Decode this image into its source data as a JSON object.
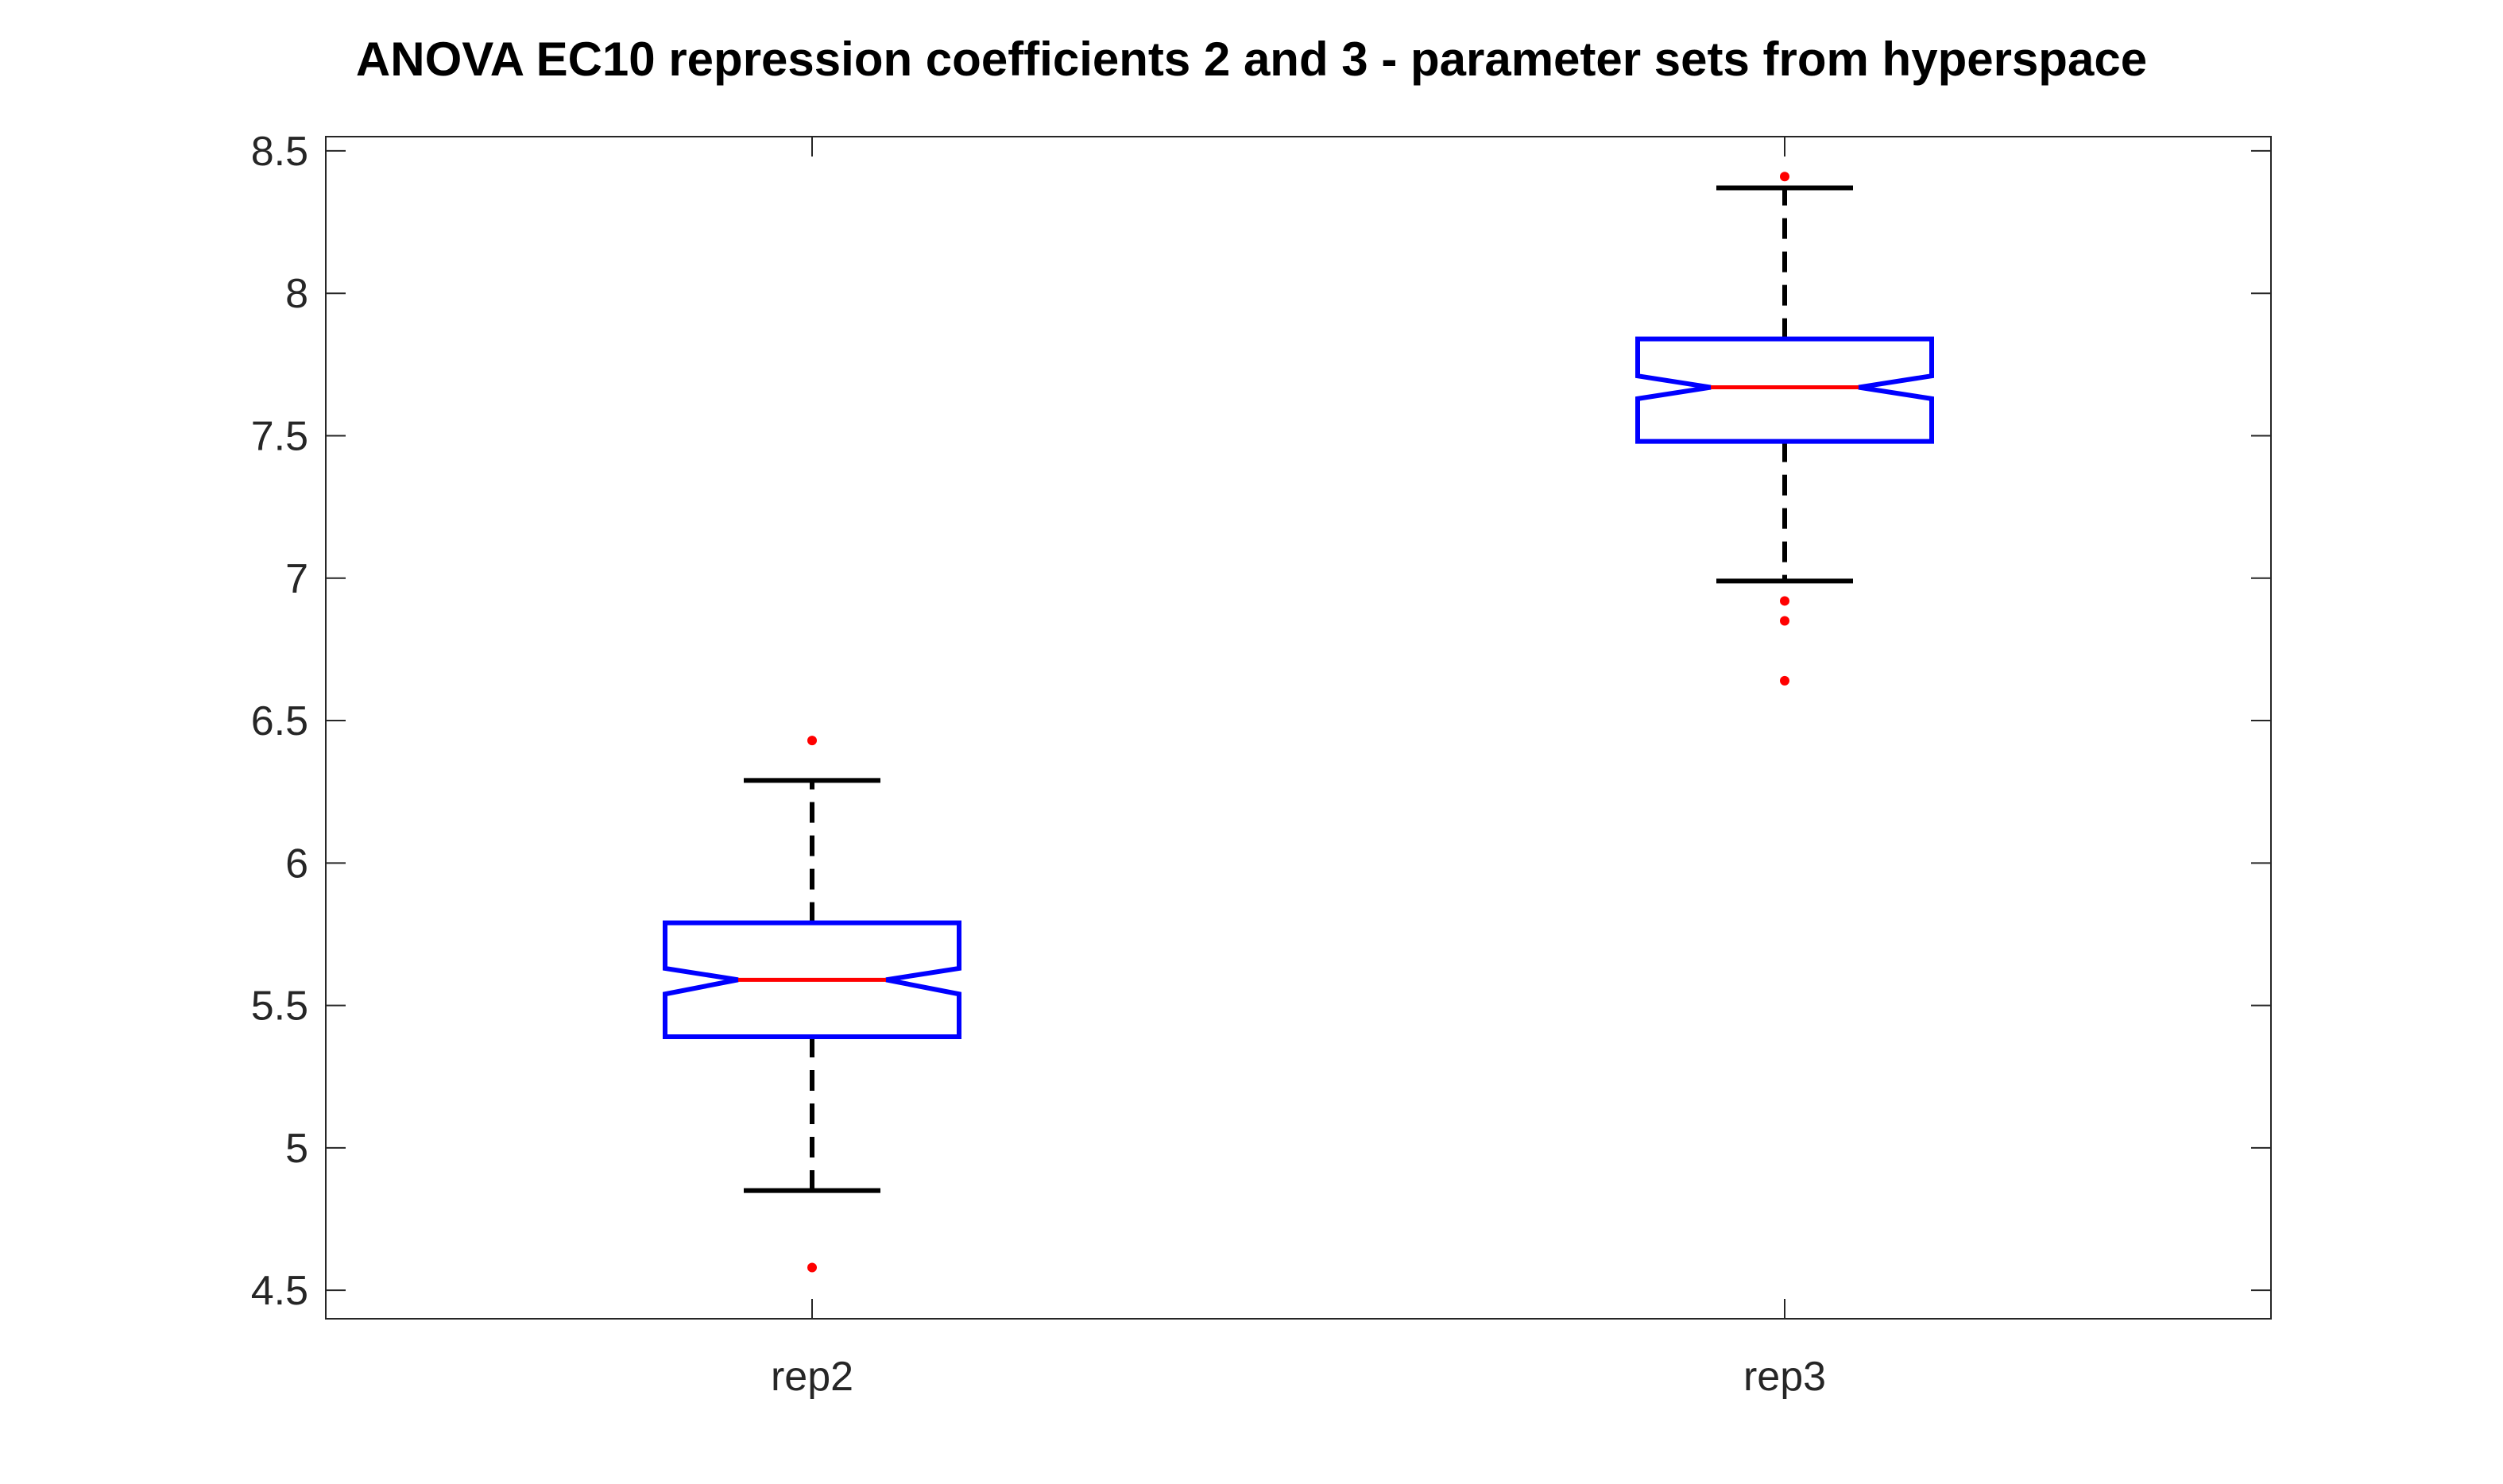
{
  "chart_data": {
    "type": "box",
    "title": "ANOVA EC10 repression coefficients 2 and 3 - parameter sets from hyperspace",
    "xlabel": "",
    "ylabel": "",
    "ylim": [
      4.4,
      8.55
    ],
    "yticks": [
      4.5,
      5,
      5.5,
      6,
      6.5,
      7,
      7.5,
      8,
      8.5
    ],
    "ytick_labels": [
      "4.5",
      "5",
      "5.5",
      "6",
      "6.5",
      "7",
      "7.5",
      "8",
      "8.5"
    ],
    "categories": [
      "rep2",
      "rep3"
    ],
    "notched": true,
    "grid": false,
    "boxes": [
      {
        "category": "rep2",
        "whisker_low": 4.85,
        "q1": 5.39,
        "notch_low": 5.54,
        "median": 5.59,
        "notch_high": 5.63,
        "q3": 5.79,
        "whisker_high": 6.29,
        "outliers": [
          6.43,
          4.58
        ]
      },
      {
        "category": "rep3",
        "whisker_low": 6.99,
        "q1": 7.48,
        "notch_low": 7.63,
        "median": 7.67,
        "notch_high": 7.71,
        "q3": 7.84,
        "whisker_high": 8.37,
        "outliers": [
          8.41,
          6.92,
          6.85,
          6.64
        ]
      }
    ],
    "colors": {
      "box": "#0000ff",
      "median": "#ff0000",
      "whisker": "#000000",
      "outlier": "#ff0000",
      "axes": "#262626"
    }
  }
}
